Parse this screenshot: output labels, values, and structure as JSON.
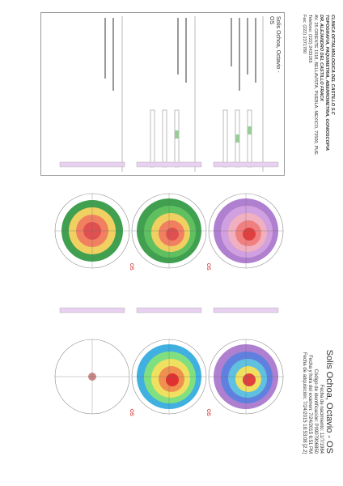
{
  "header": {
    "clinic": [
      "CLINICA OFTALMOLOGICA DEL CASTILLO S.C",
      "TOPOGRAFIA, PAQUIMETRIA, ABERROMETRIA, GONIOSCOPIA",
      "DR. ALEJANDRO DEL CASTILLO FRACK",
      "AV. 25 ORIENTE 1518, BELLAVISTA, PUEBLA, MEXICO, 72500, PUE.",
      "Telefono: (222) 2433165",
      "Fax: (222) 2371780"
    ],
    "patient": {
      "name": "Solis Ochoa, Octavio - OS",
      "lines": [
        "Fecha de nacimiento: 11/7/1984",
        "Código de identificación: P0907906850",
        "Fecha y hora del examen: 7/24/2015 6:51 PM",
        "Fecha de adquisición: 7/24/2015 18:53:08 [2.2]"
      ]
    }
  },
  "panel": {
    "name": "Solis Ochoa, Octavio -",
    "eye": "OS"
  },
  "maps": [
    {
      "label": "OS"
    },
    {
      "label": "OS"
    },
    {
      "label": "OS"
    },
    {
      "label": "OS"
    }
  ]
}
